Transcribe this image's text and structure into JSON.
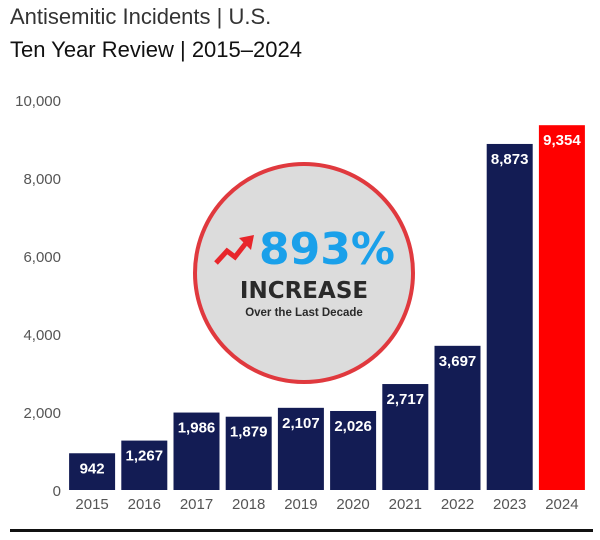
{
  "header": {
    "title": "Antisemitic Incidents | U.S.",
    "subtitle": "Ten Year Review | 2015–2024"
  },
  "badge": {
    "percent": "893%",
    "word": "INCREASE",
    "caption": "Over the Last Decade",
    "icon": "trend-up-arrow-icon",
    "fill_color": "#dcdcdc",
    "ring_color": "#e0393e",
    "percent_color": "#1aa0ea"
  },
  "chart_data": {
    "type": "bar",
    "categories": [
      "2015",
      "2016",
      "2017",
      "2018",
      "2019",
      "2020",
      "2021",
      "2022",
      "2023",
      "2024"
    ],
    "values": [
      942,
      1267,
      1986,
      1879,
      2107,
      2026,
      2717,
      3697,
      8873,
      9354
    ],
    "data_labels": [
      "942",
      "1,267",
      "1,986",
      "1,879",
      "2,107",
      "2,026",
      "2,717",
      "3,697",
      "8,873",
      "9,354"
    ],
    "ylim": [
      0,
      10000
    ],
    "yticks": [
      0,
      2000,
      4000,
      6000,
      8000,
      10000
    ],
    "ytick_labels": [
      "0",
      "2,000",
      "4,000",
      "6,000",
      "8,000",
      "10,000"
    ],
    "grid": false,
    "bar_color": "#131c54",
    "highlight_index": 9,
    "highlight_color": "#ff0000"
  }
}
